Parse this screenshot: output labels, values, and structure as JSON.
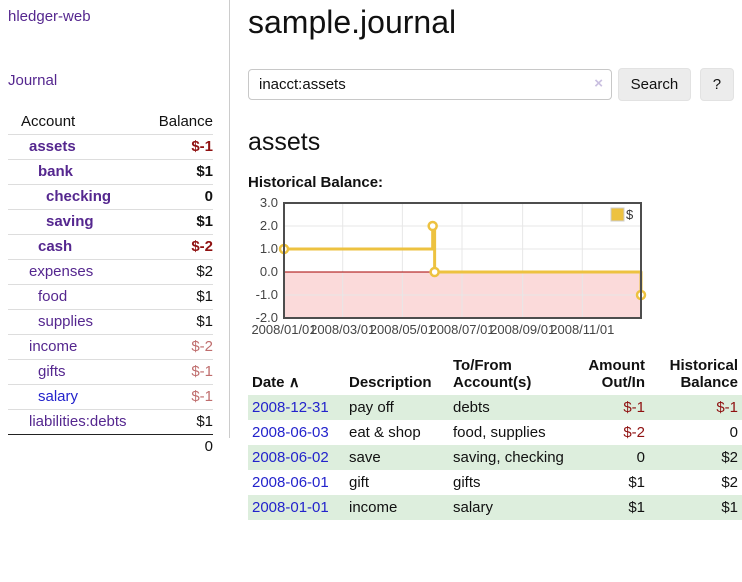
{
  "app": {
    "title": "hledger-web",
    "nav_journal": "Journal"
  },
  "sidebar": {
    "accounts_header": {
      "account": "Account",
      "balance": "Balance"
    },
    "rows": [
      {
        "name": "assets",
        "balance": "$-1"
      },
      {
        "name": "bank",
        "balance": "$1"
      },
      {
        "name": "checking",
        "balance": "0"
      },
      {
        "name": "saving",
        "balance": "$1"
      },
      {
        "name": "cash",
        "balance": "$-2"
      },
      {
        "name": "expenses",
        "balance": "$2"
      },
      {
        "name": "food",
        "balance": "$1"
      },
      {
        "name": "supplies",
        "balance": "$1"
      },
      {
        "name": "income",
        "balance": "$-2"
      },
      {
        "name": "gifts",
        "balance": "$-1"
      },
      {
        "name": "salary",
        "balance": "$-1"
      },
      {
        "name": "liabilities:debts",
        "balance": "$1"
      }
    ],
    "total": "0"
  },
  "header": {
    "title": "sample.journal"
  },
  "search": {
    "value": "inacct:assets",
    "clear_icon": "×",
    "button_label": "Search",
    "help_label": "?"
  },
  "account_page": {
    "heading": "assets",
    "chart_label": "Historical Balance:"
  },
  "chart_data": {
    "type": "line",
    "style": "step",
    "title": "Historical Balance",
    "series": [
      {
        "name": "$",
        "color": "#edc240",
        "points": [
          [
            "2008-01-01",
            1
          ],
          [
            "2008-06-01",
            2
          ],
          [
            "2008-06-03",
            0
          ],
          [
            "2008-12-31",
            -1
          ]
        ]
      }
    ],
    "xlim": [
      "2008-01-01",
      "2008-12-31"
    ],
    "ylim": [
      -2.0,
      3.0
    ],
    "x_ticks": [
      "2008/01/01",
      "2008/03/01",
      "2008/05/01",
      "2008/07/01",
      "2008/09/01",
      "2008/11/01"
    ],
    "y_ticks": [
      3.0,
      2.0,
      1.0,
      0.0,
      -1.0,
      -2.0
    ],
    "grid": true,
    "legend": [
      "$"
    ],
    "legend_position": "top-right",
    "negative_region_color": "#fbdada",
    "zero_line_color": "#a40000",
    "axis_text_color": "#444444",
    "border_color": "#4d4d4d"
  },
  "register": {
    "headers": {
      "date": "Date",
      "sort_indicator": "∧",
      "description": "Description",
      "accounts": "To/From Account(s)",
      "amount": "Amount Out/In",
      "balance": "Historical Balance"
    },
    "rows": [
      {
        "date": "2008-12-31",
        "description": "pay off",
        "accounts": "debts",
        "amount": "$-1",
        "balance": "$-1"
      },
      {
        "date": "2008-06-03",
        "description": "eat & shop",
        "accounts": "food, supplies",
        "amount": "$-2",
        "balance": "0"
      },
      {
        "date": "2008-06-02",
        "description": "save",
        "accounts": "saving, checking",
        "amount": "0",
        "balance": "$2"
      },
      {
        "date": "2008-06-01",
        "description": "gift",
        "accounts": "gifts",
        "amount": "$1",
        "balance": "$2"
      },
      {
        "date": "2008-01-01",
        "description": "income",
        "accounts": "salary",
        "amount": "$1",
        "balance": "$1"
      }
    ]
  }
}
